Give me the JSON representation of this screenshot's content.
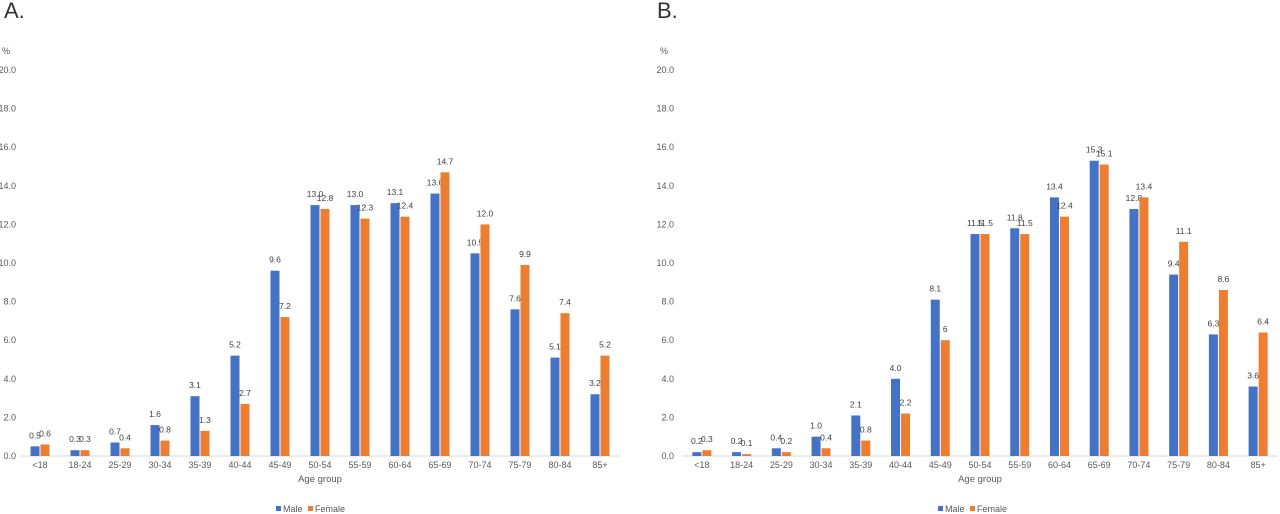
{
  "colors": {
    "male": "#4472C4",
    "female": "#ED7D31",
    "axis": "#D9D9D9"
  },
  "chart_data": [
    {
      "type": "bar",
      "panel": "A.",
      "unit_label": "%",
      "xlabel": "Age group",
      "ylabel": "",
      "ylim": [
        0,
        20
      ],
      "yticks": [
        "0.0",
        "2.0",
        "4.0",
        "6.0",
        "8.0",
        "10.0",
        "12.0",
        "14.0",
        "16.0",
        "18.0",
        "20.0"
      ],
      "grid": false,
      "legend_position": "bottom",
      "categories": [
        "<18",
        "18-24",
        "25-29",
        "30-34",
        "35-39",
        "40-44",
        "45-49",
        "50-54",
        "55-59",
        "60-64",
        "65-69",
        "70-74",
        "75-79",
        "80-84",
        "85+"
      ],
      "series": [
        {
          "name": "Male",
          "values": [
            0.5,
            0.3,
            0.7,
            1.6,
            3.1,
            5.2,
            9.6,
            13.0,
            13.0,
            13.1,
            13.6,
            10.5,
            7.6,
            5.1,
            3.2
          ],
          "labels": [
            "0.5",
            "0.3",
            "0.7",
            "1.6",
            "3.1",
            "5.2",
            "9.6",
            "13.0",
            "13.0",
            "13.1",
            "13.6",
            "10.5",
            "7.6",
            "5.1",
            "3.2"
          ]
        },
        {
          "name": "Female",
          "values": [
            0.6,
            0.3,
            0.4,
            0.8,
            1.3,
            2.7,
            7.2,
            12.8,
            12.3,
            12.4,
            14.7,
            12.0,
            9.9,
            7.4,
            5.2
          ],
          "labels": [
            "0.6",
            "0.3",
            "0.4",
            "0.8",
            "1.3",
            "2.7",
            "7.2",
            "12.8",
            "12.3",
            "12.4",
            "14.7",
            "12.0",
            "9.9",
            "7.4",
            "5.2"
          ]
        }
      ]
    },
    {
      "type": "bar",
      "panel": "B.",
      "unit_label": "%",
      "xlabel": "Age group",
      "ylabel": "",
      "ylim": [
        0,
        20
      ],
      "yticks": [
        "0.0",
        "2.0",
        "4.0",
        "6.0",
        "8.0",
        "10.0",
        "12.0",
        "14.0",
        "16.0",
        "18.0",
        "20.0"
      ],
      "grid": false,
      "legend_position": "bottom",
      "categories": [
        "<18",
        "18-24",
        "25-29",
        "30-34",
        "35-39",
        "40-44",
        "45-49",
        "50-54",
        "55-59",
        "60-64",
        "65-69",
        "70-74",
        "75-79",
        "80-84",
        "85+"
      ],
      "series": [
        {
          "name": "Male",
          "values": [
            0.2,
            0.2,
            0.4,
            1.0,
            2.1,
            4.0,
            8.1,
            11.5,
            11.8,
            13.4,
            15.3,
            12.8,
            9.4,
            6.3,
            3.6
          ],
          "labels": [
            "0.2",
            "0.2",
            "0.4",
            "1.0",
            "2.1",
            "4.0",
            "8.1",
            "11.5",
            "11.8",
            "13.4",
            "15.3",
            "12.8",
            "9.4",
            "6.3",
            "3.6"
          ]
        },
        {
          "name": "Female",
          "values": [
            0.3,
            0.1,
            0.2,
            0.4,
            0.8,
            2.2,
            6.0,
            11.5,
            11.5,
            12.4,
            15.1,
            13.4,
            11.1,
            8.6,
            6.4
          ],
          "labels": [
            "0.3",
            "0.1",
            "0.2",
            "0.4",
            "0.8",
            "2.2",
            "6",
            "11.5",
            "11.5",
            "12.4",
            "15.1",
            "13.4",
            "11.1",
            "8.6",
            "6.4"
          ]
        }
      ]
    }
  ]
}
